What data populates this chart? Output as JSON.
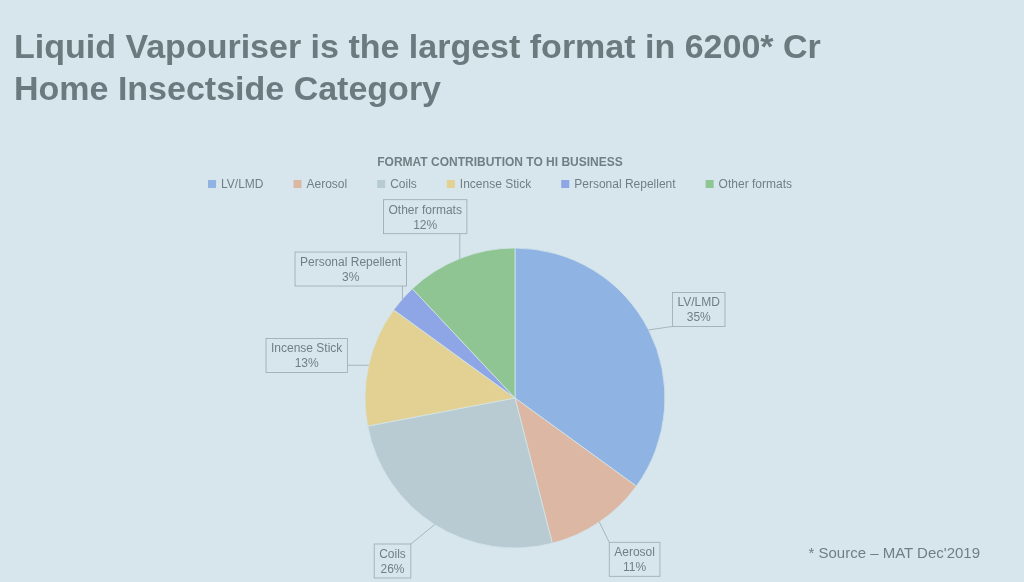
{
  "chart_data": {
    "type": "pie",
    "title": "Liquid Vapouriser is the largest format in 6200* Cr Home Insectside Category",
    "subtitle": "FORMAT CONTRIBUTION TO HI BUSINESS",
    "categories": [
      "LV/LMD",
      "Aerosol",
      "Coils",
      "Incense Stick",
      "Personal Repellent",
      "Other formats"
    ],
    "values": [
      35,
      11,
      26,
      13,
      3,
      12
    ],
    "value_labels": [
      "35%",
      "11%",
      "26%",
      "13%",
      "3%",
      "12%"
    ],
    "colors": [
      "#8fb3e2",
      "#dcb8a4",
      "#b8cbd3",
      "#e2d192",
      "#8ea6e6",
      "#8fc592"
    ],
    "legend": "top",
    "annotations": [
      "* Source – MAT Dec'2019"
    ]
  }
}
